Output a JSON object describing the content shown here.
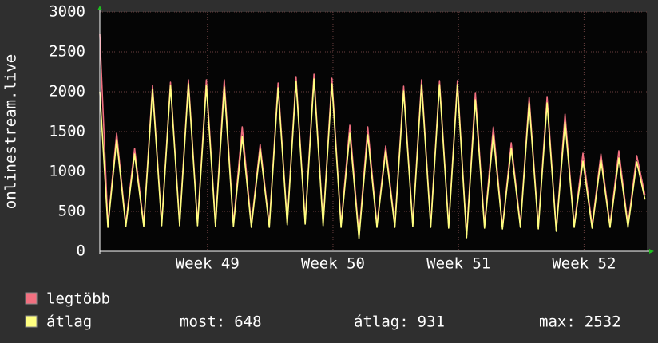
{
  "chart_data": {
    "type": "line",
    "y_label": "onlinestream.live",
    "x": [
      0,
      0.45,
      0.94,
      1.45,
      1.94,
      2.45,
      2.94,
      3.45,
      3.94,
      4.45,
      4.94,
      5.45,
      5.94,
      6.45,
      6.94,
      7.45,
      7.94,
      8.45,
      8.94,
      9.45,
      9.94,
      10.45,
      10.94,
      11.45,
      11.94,
      12.45,
      12.94,
      13.45,
      13.94,
      14.45,
      14.94,
      15.45,
      15.94,
      16.45,
      16.94,
      17.45,
      17.94,
      18.45,
      18.94,
      19.45,
      19.94,
      20.45,
      20.94,
      21.45,
      21.94,
      22.45,
      22.94,
      23.45,
      23.94,
      24.45,
      24.94,
      25.45,
      25.94,
      26.45,
      26.94,
      27.45,
      27.94,
      28.45,
      28.94,
      29.45,
      29.94,
      30.4
    ],
    "series": [
      {
        "name": "legtöbb",
        "color": "#f27080",
        "values": [
          2720,
          330,
          1480,
          340,
          1290,
          340,
          2080,
          350,
          2120,
          350,
          2150,
          350,
          2150,
          340,
          2150,
          340,
          1560,
          330,
          1340,
          330,
          2110,
          360,
          2190,
          370,
          2220,
          350,
          2170,
          330,
          1580,
          200,
          1560,
          330,
          1320,
          330,
          2070,
          340,
          2150,
          330,
          2140,
          320,
          2140,
          200,
          1990,
          320,
          1560,
          300,
          1360,
          330,
          1930,
          310,
          1940,
          270,
          1720,
          320,
          1230,
          320,
          1220,
          330,
          1260,
          330,
          1200,
          700
        ]
      },
      {
        "name": "átlag",
        "color": "#ffff80",
        "values": [
          2000,
          300,
          1400,
          310,
          1220,
          310,
          2030,
          320,
          2080,
          320,
          2100,
          320,
          2080,
          310,
          2060,
          310,
          1440,
          300,
          1280,
          300,
          2050,
          330,
          2130,
          340,
          2160,
          320,
          2100,
          300,
          1480,
          160,
          1460,
          300,
          1260,
          300,
          2010,
          310,
          2090,
          300,
          2090,
          290,
          2090,
          170,
          1900,
          290,
          1460,
          280,
          1290,
          300,
          1860,
          280,
          1860,
          250,
          1620,
          300,
          1130,
          290,
          1150,
          300,
          1170,
          300,
          1120,
          648
        ]
      }
    ],
    "xlim": [
      0,
      30.5
    ],
    "xticks": [
      {
        "value": 6,
        "label": "Week 49"
      },
      {
        "value": 13,
        "label": "Week 50"
      },
      {
        "value": 20,
        "label": "Week 51"
      },
      {
        "value": 27,
        "label": "Week 52"
      }
    ],
    "ylim": [
      0,
      3000
    ],
    "yticks": [
      0,
      500,
      1000,
      1500,
      2000,
      2500,
      3000
    ],
    "grid": true,
    "stats": [
      {
        "label": "most:",
        "value": 648
      },
      {
        "label": "átlag:",
        "value": 931
      },
      {
        "label": "max:",
        "value": 2532
      }
    ]
  }
}
